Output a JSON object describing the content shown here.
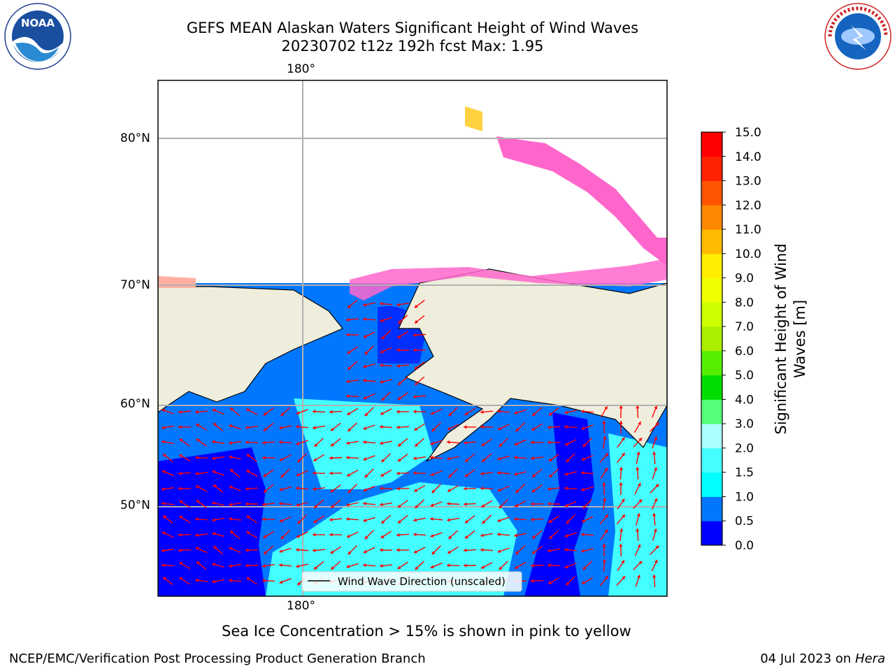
{
  "title": {
    "line1": "GEFS MEAN Alaskan Waters Significant Height of Wind Waves",
    "line2": "20230702 t12z 192h fcst   Max: 1.95"
  },
  "map": {
    "lon_labels": [
      "180°",
      "180°"
    ],
    "lat_labels": [
      "80°N",
      "70°N",
      "60°N",
      "50°N"
    ],
    "legend_label": "Wind Wave Direction (unscaled)",
    "arrow_color": "#ff0000",
    "land_color": "#efeedd",
    "ice_colors": [
      "#ff00ff",
      "#ff66cc",
      "#ffb0a0",
      "#ffd040"
    ]
  },
  "colorbar": {
    "title": "Significant Height of Wind Waves [m]",
    "title_line1": "Significant Height of Wind",
    "title_line2": "Waves [m]",
    "ticks": [
      "0.0",
      "0.5",
      "1.0",
      "1.5",
      "2.0",
      "3.0",
      "4.0",
      "5.0",
      "6.0",
      "7.0",
      "8.0",
      "9.0",
      "10.0",
      "11.0",
      "12.0",
      "13.0",
      "14.0",
      "15.0"
    ],
    "colors": [
      "#0000ff",
      "#0077ff",
      "#00ffff",
      "#44ffff",
      "#aaffff",
      "#55ff77",
      "#00dd00",
      "#55ee00",
      "#aaee00",
      "#ccff00",
      "#eeff00",
      "#ffee00",
      "#ffbb00",
      "#ff8800",
      "#ff5500",
      "#ff2200",
      "#ff0000"
    ]
  },
  "notes": {
    "sea_ice": "Sea Ice Concentration > 15% is shown in pink to yellow"
  },
  "footer": {
    "left": "NCEP/EMC/Verification Post Processing Product Generation Branch",
    "date": "04 Jul 2023 on ",
    "machine": "Hera"
  },
  "logos": {
    "noaa": "NOAA",
    "nws": "NATIONAL WEATHER SERVICE"
  }
}
